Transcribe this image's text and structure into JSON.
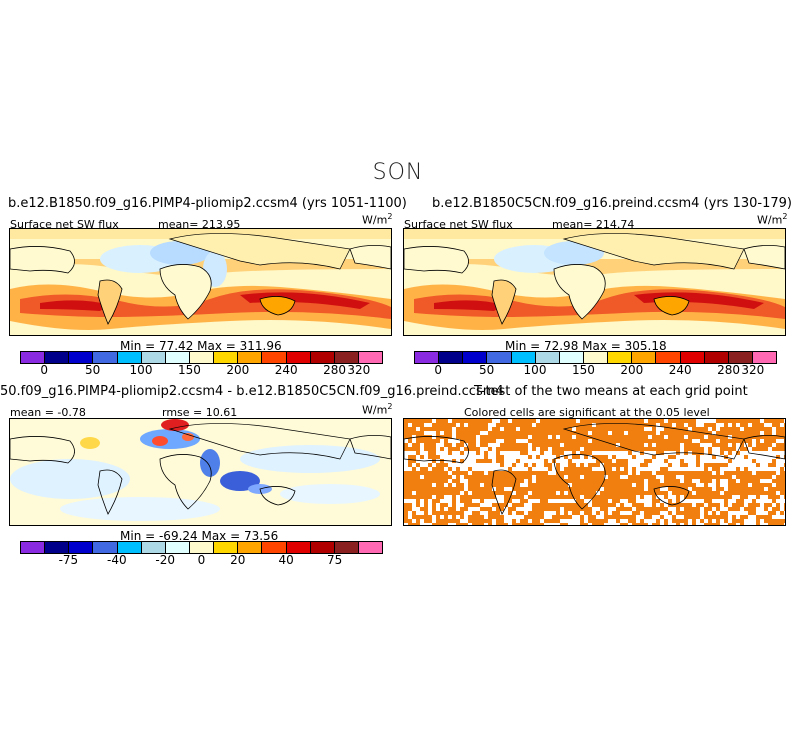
{
  "title": "SON",
  "panels": [
    {
      "run_title": "b.e12.B1850.f09_g16.PIMP4-pliomip2.ccsm4 (yrs 1051-1100)",
      "variable": "Surface net SW flux",
      "stat": "mean= 213.95",
      "units_base": "W/m",
      "units_exp": "2",
      "minmax": "Min =  77.42  Max =  311.96",
      "colorbar": "abs",
      "ticks": [
        "0",
        "50",
        "100",
        "150",
        "200",
        "240",
        "280",
        "320"
      ]
    },
    {
      "run_title": "b.e12.B1850C5CN.f09_g16.preind.ccsm4 (yrs 130-179)",
      "variable": "Surface net SW flux",
      "stat": "mean= 214.74",
      "units_base": "W/m",
      "units_exp": "2",
      "minmax": "Min =  72.98  Max =  305.18",
      "colorbar": "abs",
      "ticks": [
        "0",
        "50",
        "100",
        "150",
        "200",
        "240",
        "280",
        "320"
      ]
    },
    {
      "run_title": "50.f09_g16.PIMP4-pliomip2.ccsm4 - b.e12.B1850C5CN.f09_g16.preind.ccsm4",
      "stat": "mean =  -0.78",
      "stat2": "rmse =  10.61",
      "units_base": "W/m",
      "units_exp": "2",
      "minmax": "Min = -69.24  Max =  73.56",
      "colorbar": "diff",
      "ticks": [
        "-75",
        "-40",
        "-20",
        "0",
        "20",
        "40",
        "75"
      ]
    },
    {
      "run_title": "T-test of the two means at each grid point",
      "subtitle": "Colored cells are significant at the 0.05 level"
    }
  ],
  "colorbar_colors": [
    "#8a2be2",
    "#00008b",
    "#0000cd",
    "#4169e1",
    "#00bfff",
    "#add8e6",
    "#e0ffff",
    "#fffacd",
    "#ffd700",
    "#ffa500",
    "#ff4500",
    "#e00000",
    "#b00000",
    "#8b2020",
    "#ff69b4"
  ],
  "ttest_color": "#f07f0f"
}
